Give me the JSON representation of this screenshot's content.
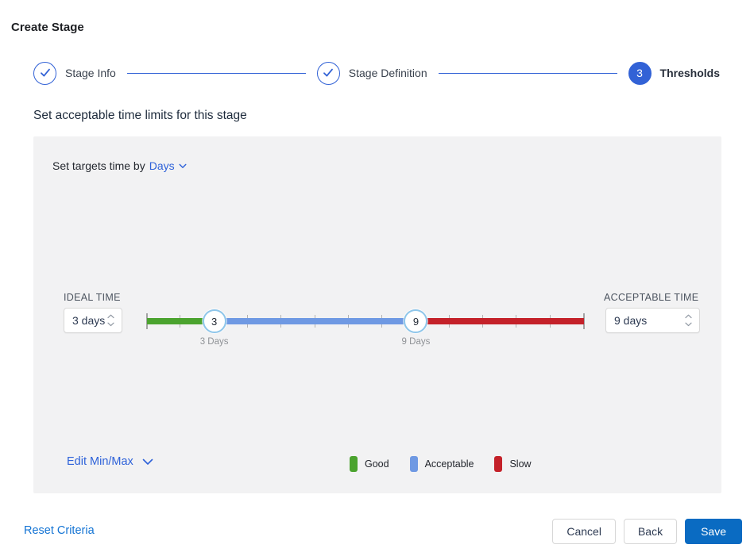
{
  "page": {
    "title": "Create Stage"
  },
  "stepper": {
    "steps": [
      {
        "label": "Stage Info",
        "state": "completed"
      },
      {
        "label": "Stage Definition",
        "state": "completed"
      },
      {
        "label": "Thresholds",
        "state": "active",
        "number": "3"
      }
    ]
  },
  "section": {
    "heading": "Set acceptable time limits for this stage"
  },
  "panel": {
    "targets_prefix": "Set targets time by",
    "targets_unit": "Days",
    "ideal": {
      "label": "IDEAL TIME",
      "value": "3 days"
    },
    "acceptable": {
      "label": "ACCEPTABLE TIME",
      "value": "9 days"
    },
    "edit_minmax_label": "Edit Min/Max",
    "legend": {
      "items": [
        {
          "label": "Good",
          "color": "#4ba32e"
        },
        {
          "label": "Acceptable",
          "color": "#6f99e3"
        },
        {
          "label": "Slow",
          "color": "#c42129"
        }
      ]
    }
  },
  "slider": {
    "min": 1,
    "max": 14,
    "ideal_value": 3,
    "acceptable_value": 9,
    "ideal_handle_text": "3",
    "acceptable_handle_text": "9",
    "ideal_label": "3 Days",
    "acceptable_label": "9 Days",
    "colors": {
      "good": "#4ba32e",
      "acceptable": "#6f99e3",
      "slow": "#c42129"
    }
  },
  "footer": {
    "reset_label": "Reset Criteria",
    "cancel_label": "Cancel",
    "back_label": "Back",
    "save_label": "Save"
  },
  "colors": {
    "accent_blue": "#3262d6",
    "primary_button": "#0a6bc2",
    "panel_bg": "#f2f2f3"
  }
}
